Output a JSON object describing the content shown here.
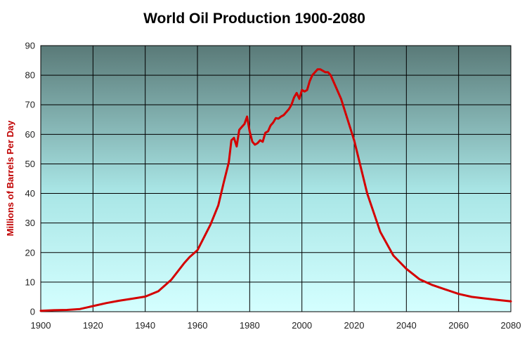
{
  "chart_data": {
    "type": "line",
    "title": "World Oil Production 1900-2080",
    "xlabel": "",
    "ylabel": "Millions of Barrels Per Day",
    "xlim": [
      1900,
      2080
    ],
    "ylim": [
      0,
      90
    ],
    "xticks": [
      1900,
      1920,
      1940,
      1960,
      1980,
      2000,
      2020,
      2040,
      2060,
      2080
    ],
    "yticks": [
      0,
      10,
      20,
      30,
      40,
      50,
      60,
      70,
      80,
      90
    ],
    "grid": true,
    "background_gradient": [
      "#5a7a78",
      "#a9e6e6",
      "#d4ffff"
    ],
    "series": [
      {
        "color": "#d40000",
        "x": [
          1900,
          1905,
          1910,
          1915,
          1920,
          1925,
          1930,
          1935,
          1940,
          1945,
          1950,
          1955,
          1957,
          1960,
          1965,
          1968,
          1970,
          1972,
          1973,
          1974,
          1975,
          1976,
          1977,
          1978,
          1979,
          1980,
          1981,
          1982,
          1983,
          1984,
          1985,
          1986,
          1987,
          1988,
          1989,
          1990,
          1991,
          1992,
          1993,
          1994,
          1995,
          1996,
          1997,
          1998,
          1999,
          2000,
          2001,
          2002,
          2003,
          2004,
          2005,
          2006,
          2007,
          2008,
          2009,
          2010,
          2011,
          2012,
          2015,
          2020,
          2025,
          2030,
          2035,
          2040,
          2045,
          2050,
          2055,
          2060,
          2065,
          2070,
          2075,
          2080
        ],
        "y": [
          0.3,
          0.5,
          0.6,
          0.9,
          1.9,
          2.9,
          3.7,
          4.4,
          5.1,
          6.9,
          10.8,
          16.5,
          18.5,
          20.8,
          29.5,
          36,
          43.5,
          50.5,
          58,
          58.8,
          55.9,
          61.5,
          62.5,
          63.5,
          66,
          61,
          57.5,
          56.5,
          57,
          58,
          57.5,
          60.5,
          61,
          63,
          64,
          65.5,
          65.3,
          66,
          66.5,
          67.5,
          68.5,
          70,
          72.5,
          74,
          72,
          75,
          74.5,
          75,
          78,
          80,
          81,
          82,
          82,
          81.5,
          81,
          81,
          80,
          78,
          72,
          58,
          40,
          27,
          19,
          14.5,
          11,
          9,
          7.5,
          6,
          5,
          4.5,
          4,
          3.5
        ]
      }
    ]
  }
}
